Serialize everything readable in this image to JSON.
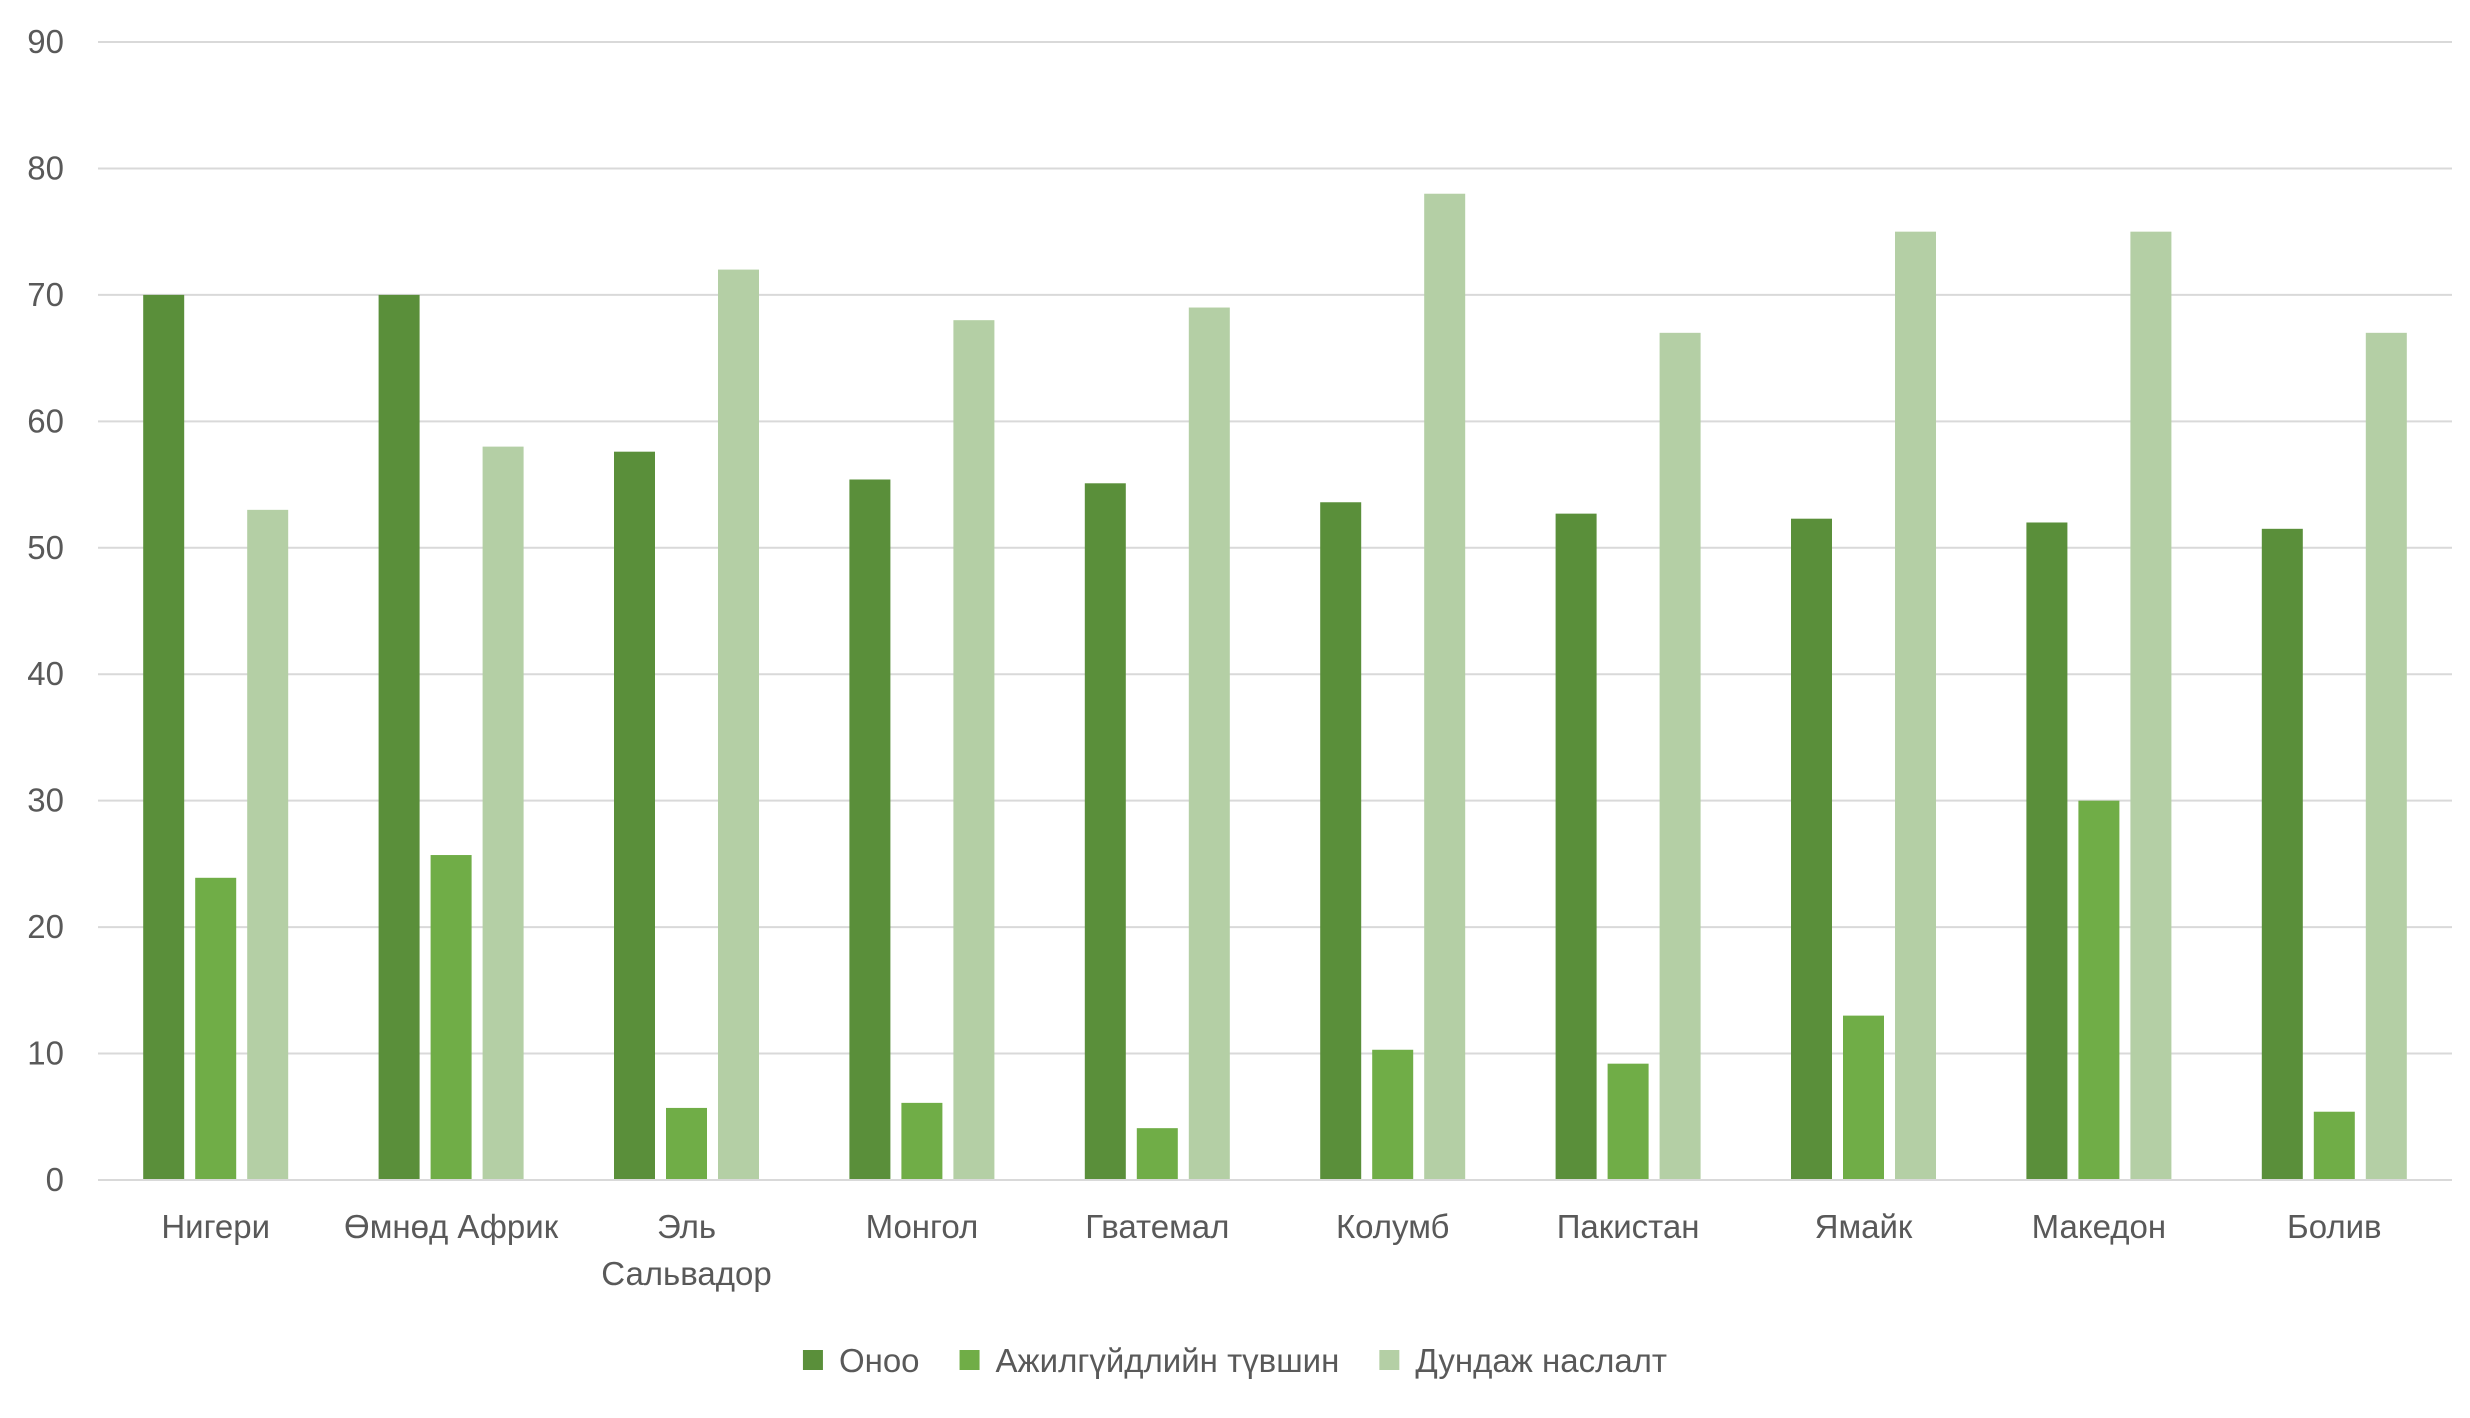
{
  "chart_data": {
    "type": "bar",
    "title": "",
    "xlabel": "",
    "ylabel": "",
    "ylim": [
      0,
      90
    ],
    "y_ticks": [
      0,
      10,
      20,
      30,
      40,
      50,
      60,
      70,
      80,
      90
    ],
    "grid": true,
    "legend_position": "bottom",
    "categories": [
      [
        "Нигери"
      ],
      [
        "Өмнөд Африк"
      ],
      [
        "Эль",
        "Сальвадор"
      ],
      [
        "Монгол"
      ],
      [
        "Гватемал"
      ],
      [
        "Колумб"
      ],
      [
        "Пакистан"
      ],
      [
        "Ямайк"
      ],
      [
        "Македон"
      ],
      [
        "Болив"
      ]
    ],
    "series": [
      {
        "name": "Оноо",
        "color": "#5a8f3a",
        "values": [
          70,
          70,
          57.6,
          55.4,
          55.1,
          53.6,
          52.7,
          52.3,
          52,
          51.5
        ]
      },
      {
        "name": "Ажилгүйдлийн түвшин",
        "color": "#70ad47",
        "values": [
          23.9,
          25.7,
          5.7,
          6.1,
          4.1,
          10.3,
          9.2,
          13,
          30,
          5.4
        ]
      },
      {
        "name": "Дундаж наслалт",
        "color": "#b4cfa5",
        "values": [
          53,
          58,
          72,
          68,
          69,
          78,
          67,
          75,
          75,
          67
        ]
      }
    ]
  }
}
